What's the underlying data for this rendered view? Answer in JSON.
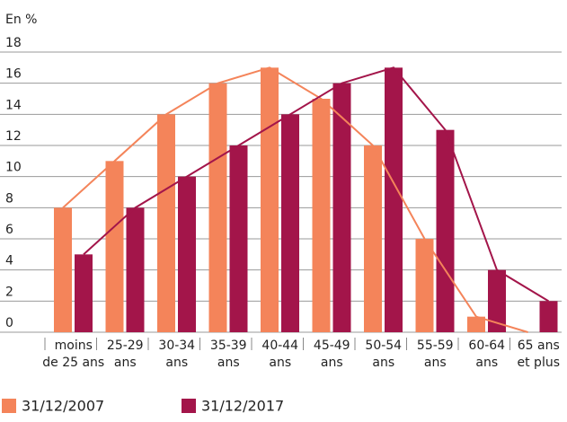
{
  "chart_data": {
    "type": "bar-line",
    "y_label": "En %",
    "categories": [
      [
        "moins",
        "de 25 ans"
      ],
      [
        "25-29",
        "ans"
      ],
      [
        "30-34",
        "ans"
      ],
      [
        "35-39",
        "ans"
      ],
      [
        "40-44",
        "ans"
      ],
      [
        "45-49",
        "ans"
      ],
      [
        "50-54",
        "ans"
      ],
      [
        "55-59",
        "ans"
      ],
      [
        "60-64",
        "ans"
      ],
      [
        "65 ans",
        "et plus"
      ]
    ],
    "series": [
      {
        "name": "31/12/2007",
        "color": "#f4845a",
        "values": [
          8,
          11,
          14,
          16,
          17,
          15,
          12,
          6,
          1,
          0
        ]
      },
      {
        "name": "31/12/2017",
        "color": "#a3154a",
        "values": [
          5,
          8,
          10,
          12,
          14,
          16,
          17,
          13,
          4,
          2
        ]
      }
    ],
    "ylim": [
      0,
      18
    ],
    "yticks": [
      0,
      2,
      4,
      6,
      8,
      10,
      12,
      14,
      16,
      18
    ],
    "grid": true,
    "legend": "bottom"
  }
}
